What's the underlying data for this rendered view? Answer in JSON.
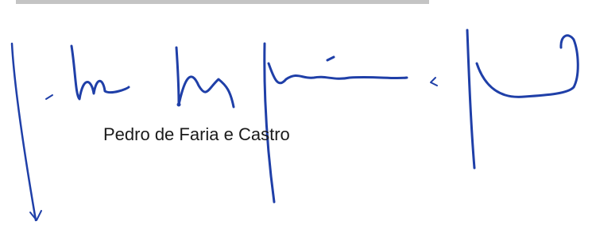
{
  "signature": {
    "name": "Pedro de Faria e Castro"
  }
}
